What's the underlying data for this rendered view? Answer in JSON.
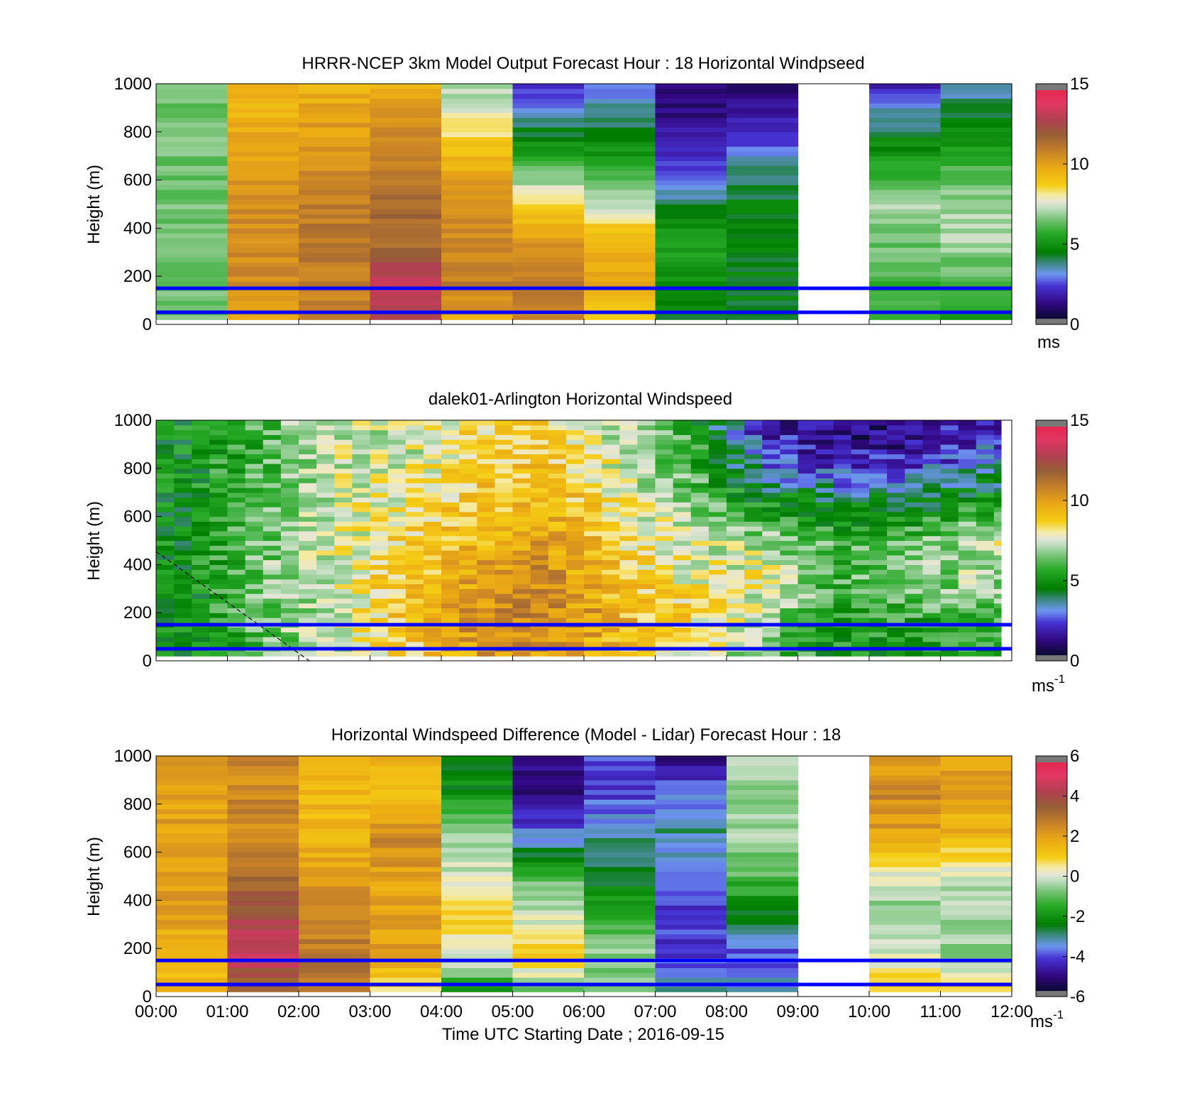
{
  "figure": {
    "ref_lines_m": [
      150,
      50
    ],
    "ref_line_color": "#0000ff",
    "panel_bg": "#ffffff",
    "time_ticks": [
      "00:00",
      "01:00",
      "02:00",
      "03:00",
      "04:00",
      "05:00",
      "06:00",
      "07:00",
      "08:00",
      "09:00",
      "10:00",
      "11:00",
      "12:00"
    ],
    "xlabel": "Time UTC  Starting Date ; 2016-09-15"
  },
  "chart_data": [
    {
      "type": "heatmap",
      "title": "HRRR-NCEP 3km Model Output   Forecast Hour : 18 Horizontal Windpseed",
      "ylabel": "Height (m)",
      "ylim": [
        0,
        1000
      ],
      "yticks": [
        0,
        200,
        400,
        600,
        800,
        1000
      ],
      "xlim_hours": [
        0,
        12
      ],
      "colorbar": {
        "min": 0,
        "max": 15,
        "ticks": [
          0,
          5,
          10,
          15
        ],
        "unit_base": "ms",
        "unit_sup": ""
      },
      "cell_hours": 1.0,
      "missing_columns_hours": [
        9
      ],
      "approx_speed_ms_by_hour_low_to_high": [
        [
          6.5,
          6.5,
          6.5,
          6.5,
          6.5,
          6.5,
          6.5
        ],
        [
          9.5,
          10.5,
          10.5,
          10.5,
          10,
          9.5,
          9.5
        ],
        [
          10.5,
          11,
          11,
          11,
          10.5,
          10,
          9.5
        ],
        [
          12,
          13.5,
          11.5,
          11.5,
          11,
          10.5,
          9.5
        ],
        [
          9.5,
          11,
          10.5,
          10.5,
          9.5,
          8,
          7
        ],
        [
          10.5,
          11,
          10.5,
          8.5,
          6,
          4,
          2
        ],
        [
          8,
          10,
          9.5,
          7.5,
          5.5,
          4,
          3
        ],
        [
          4.5,
          5,
          5.5,
          4,
          2.5,
          1.5,
          1
        ],
        [
          4.5,
          4.5,
          4.5,
          4.5,
          3.5,
          2,
          1
        ],
        [
          null,
          null,
          null,
          null,
          null,
          null,
          null
        ],
        [
          6,
          6,
          6.5,
          7,
          5.5,
          4,
          2
        ],
        [
          5,
          6,
          7,
          7,
          6,
          4.5,
          3.5
        ]
      ]
    },
    {
      "type": "heatmap",
      "title": "dalek01-Arlington  Horizontal Windspeed",
      "ylabel": "Height (m)",
      "ylim": [
        0,
        1000
      ],
      "yticks": [
        0,
        200,
        400,
        600,
        800,
        1000
      ],
      "xlim_hours": [
        0,
        12
      ],
      "colorbar": {
        "min": 0,
        "max": 15,
        "ticks": [
          0,
          5,
          10,
          15
        ],
        "unit_base": "ms",
        "unit_sup": "-1"
      },
      "cell_hours": 0.25,
      "observed_until_hour": 11.85,
      "approx_speed_ms_by_hour_low_to_high": [
        [
          5,
          5,
          5,
          5,
          5,
          5,
          5
        ],
        [
          6,
          6.5,
          6.5,
          6.5,
          6.5,
          6,
          6
        ],
        [
          7,
          7.5,
          7.5,
          7.5,
          7.5,
          7.5,
          7.5
        ],
        [
          8.5,
          9,
          9,
          8.5,
          8,
          7.5,
          7.5
        ],
        [
          10,
          10.5,
          10,
          9.5,
          9,
          8.5,
          8.5
        ],
        [
          10,
          11,
          10.5,
          10,
          9.5,
          9,
          8.5
        ],
        [
          9,
          9.5,
          9,
          8.5,
          8,
          7.5,
          7
        ],
        [
          8,
          8.5,
          8,
          7.5,
          6.5,
          6,
          5.5
        ],
        [
          6.5,
          7,
          8,
          7,
          5,
          3,
          2
        ],
        [
          5,
          5.5,
          6,
          6,
          4,
          2,
          1
        ],
        [
          5,
          5.5,
          6.5,
          6,
          4.5,
          2,
          1
        ],
        [
          5,
          6,
          7,
          7.5,
          5,
          3,
          2
        ]
      ]
    },
    {
      "type": "heatmap",
      "title": "Horizontal Windspeed Difference (Model - Lidar) Forecast Hour : 18",
      "ylabel": "Height (m)",
      "ylim": [
        0,
        1000
      ],
      "yticks": [
        0,
        200,
        400,
        600,
        800,
        1000
      ],
      "xlim_hours": [
        0,
        12
      ],
      "colorbar": {
        "min": -6,
        "max": 6,
        "ticks": [
          -6,
          -4,
          -2,
          0,
          2,
          4,
          6
        ],
        "unit_base": "ms",
        "unit_sup": "-1"
      },
      "cell_hours": 1.0,
      "missing_columns_hours": [
        9
      ],
      "approx_diff_ms_by_hour_low_to_high": [
        [
          1.5,
          1.5,
          2,
          2,
          2,
          2,
          2
        ],
        [
          3,
          4.5,
          4,
          3,
          2.5,
          2.5,
          2.5
        ],
        [
          2.5,
          3,
          2.5,
          2,
          1.5,
          1.5,
          1.5
        ],
        [
          0,
          2,
          2,
          2,
          2.5,
          1.5,
          1.5
        ],
        [
          -2,
          0,
          1,
          0,
          -0.5,
          -2,
          -2.5
        ],
        [
          -1,
          1,
          0,
          -1,
          -3.5,
          -5,
          -5
        ],
        [
          -1,
          -0.5,
          -1.5,
          -2.5,
          -3,
          -4,
          -4
        ],
        [
          -3,
          -4,
          -4,
          -4,
          -3,
          -3.5,
          -5
        ],
        [
          -3,
          -4,
          -2.5,
          -1,
          -0.5,
          -0.5,
          -0.5
        ],
        [
          null,
          null,
          null,
          null,
          null,
          null,
          null
        ],
        [
          1.5,
          0,
          -0.5,
          0,
          2,
          2.5,
          2
        ],
        [
          1.5,
          -0.5,
          -0.5,
          0,
          1.5,
          2,
          2
        ]
      ]
    }
  ]
}
